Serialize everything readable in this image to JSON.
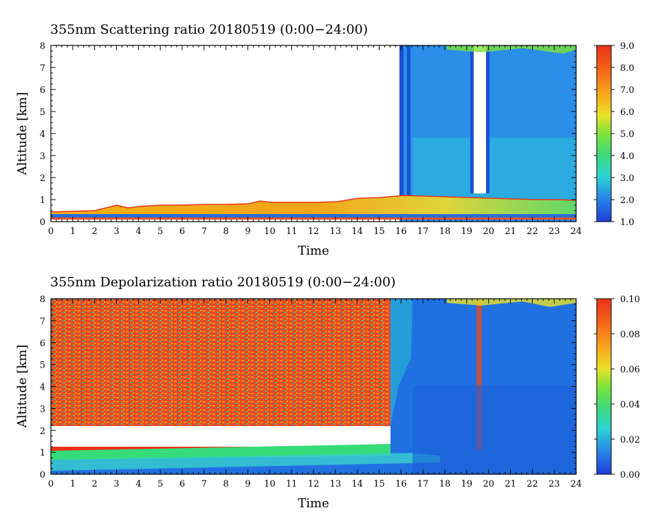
{
  "chart_data": [
    {
      "type": "heatmap",
      "title": "355nm Scattering ratio  20180519 (0:00−24:00)",
      "xlabel": "Time",
      "ylabel": "Altitude [km]",
      "xlim": [
        0,
        24
      ],
      "ylim": [
        0,
        8
      ],
      "x_ticks": [
        "0",
        "1",
        "2",
        "3",
        "4",
        "5",
        "6",
        "7",
        "8",
        "9",
        "10",
        "11",
        "12",
        "13",
        "14",
        "15",
        "16",
        "17",
        "18",
        "19",
        "20",
        "21",
        "22",
        "23",
        "24"
      ],
      "y_ticks": [
        "0",
        "1",
        "2",
        "3",
        "4",
        "5",
        "6",
        "7",
        "8"
      ],
      "colorbar": {
        "min": 1.0,
        "max": 9.0,
        "ticks": [
          "1.0",
          "2.0",
          "3.0",
          "4.0",
          "5.0",
          "6.0",
          "7.0",
          "8.0",
          "9.0"
        ]
      },
      "boundary_layer_top_km": [
        [
          0,
          0.4
        ],
        [
          1,
          0.4
        ],
        [
          2,
          0.45
        ],
        [
          3,
          0.75
        ],
        [
          3.5,
          0.6
        ],
        [
          4,
          0.65
        ],
        [
          5,
          0.7
        ],
        [
          6,
          0.7
        ],
        [
          7,
          0.75
        ],
        [
          8,
          0.75
        ],
        [
          9,
          0.8
        ],
        [
          9.5,
          0.95
        ],
        [
          10,
          0.85
        ],
        [
          11,
          0.85
        ],
        [
          12,
          0.85
        ],
        [
          13,
          0.9
        ],
        [
          14,
          1.05
        ],
        [
          15,
          1.1
        ],
        [
          16,
          1.2
        ],
        [
          17,
          1.15
        ],
        [
          18,
          1.1
        ],
        [
          19,
          1.05
        ],
        [
          20,
          1.0
        ],
        [
          21,
          0.95
        ],
        [
          22,
          0.9
        ],
        [
          23,
          0.85
        ],
        [
          24,
          0.8
        ]
      ],
      "signal_start_hour": 15.9,
      "cloud_gap_hours": [
        19.3,
        19.9
      ]
    },
    {
      "type": "heatmap",
      "title": "355nm Depolarization ratio  20180519 (0:00−24:00)",
      "xlabel": "Time",
      "ylabel": "Altitude [km]",
      "xlim": [
        0,
        24
      ],
      "ylim": [
        0,
        8
      ],
      "x_ticks": [
        "0",
        "1",
        "2",
        "3",
        "4",
        "5",
        "6",
        "7",
        "8",
        "9",
        "10",
        "11",
        "12",
        "13",
        "14",
        "15",
        "16",
        "17",
        "18",
        "19",
        "20",
        "21",
        "22",
        "23",
        "24"
      ],
      "y_ticks": [
        "0",
        "1",
        "2",
        "3",
        "4",
        "5",
        "6",
        "7",
        "8"
      ],
      "colorbar": {
        "min": 0.0,
        "max": 0.1,
        "ticks": [
          "0.00",
          "0.02",
          "0.04",
          "0.06",
          "0.08",
          "0.10"
        ]
      },
      "noisy_region_end_hour": 15.5,
      "low_depol_band_km": [
        0.9,
        1.5
      ]
    }
  ]
}
